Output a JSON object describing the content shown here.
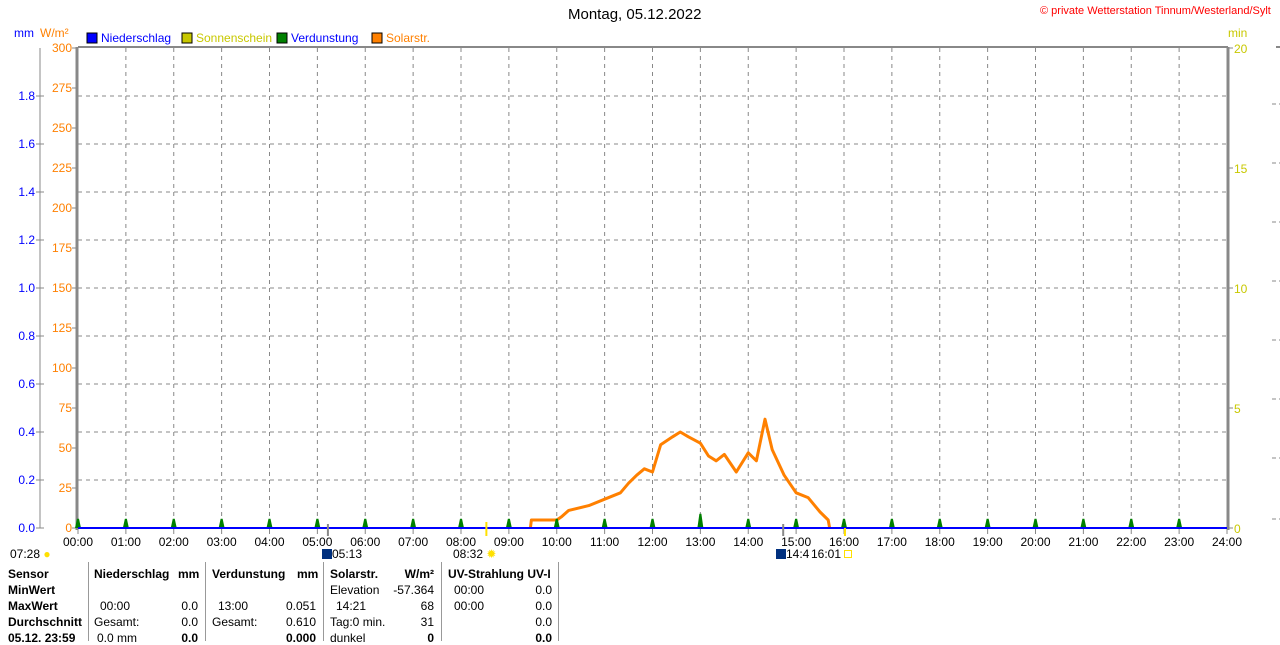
{
  "title": "Montag, 05.12.2022",
  "copyright": "© private Wetterstation Tinnum/Westerland/Sylt",
  "chart_data": {
    "type": "line",
    "title": "Montag, 05.12.2022",
    "legend_position": "top",
    "legend": [
      {
        "name": "Niederschlag",
        "color": "#0000ff"
      },
      {
        "name": "Sonnenschein",
        "color": "#c8c800"
      },
      {
        "name": "Verdunstung",
        "color": "#008000"
      },
      {
        "name": "Solarstr.",
        "color": "#ff8000"
      }
    ],
    "x_ticks": [
      "00:00",
      "01:00",
      "02:00",
      "03:00",
      "04:00",
      "05:00",
      "06:00",
      "07:00",
      "08:00",
      "09:00",
      "10:00",
      "11:00",
      "12:00",
      "13:00",
      "14:00",
      "15:00",
      "16:00",
      "17:00",
      "18:00",
      "19:00",
      "20:00",
      "21:00",
      "22:00",
      "23:00",
      "24:00"
    ],
    "y_left_mm": {
      "unit": "mm",
      "range": [
        0,
        2.0
      ],
      "ticks": [
        "0.0",
        "0.2",
        "0.4",
        "0.6",
        "0.8",
        "1.0",
        "1.2",
        "1.4",
        "1.6",
        "1.8"
      ],
      "color": "#0000ff"
    },
    "y_left_solar": {
      "unit": "W/m²",
      "range": [
        0,
        300
      ],
      "ticks": [
        "0",
        "25",
        "50",
        "75",
        "100",
        "125",
        "150",
        "175",
        "200",
        "225",
        "250",
        "275",
        "300"
      ],
      "color": "#ff8000"
    },
    "y_right_min": {
      "unit": "min",
      "range": [
        0,
        20
      ],
      "ticks": [
        "0",
        "5",
        "10",
        "15",
        "20"
      ],
      "color": "#c8c800"
    },
    "grid": true,
    "series": [
      {
        "name": "Solarstr.",
        "color": "#ff8000",
        "x_hours": [
          9.45,
          9.47,
          10.0,
          10.1,
          10.25,
          10.67,
          11.0,
          11.33,
          11.5,
          11.67,
          11.83,
          12.0,
          12.17,
          12.42,
          12.58,
          12.75,
          13.0,
          13.17,
          13.33,
          13.5,
          13.75,
          14.0,
          14.17,
          14.35,
          14.5,
          14.75,
          15.0,
          15.25,
          15.5,
          15.67,
          15.7
        ],
        "values": [
          0,
          5,
          5,
          7,
          11,
          14,
          18,
          22,
          28,
          33,
          37,
          35,
          52,
          57,
          60,
          57,
          53,
          45,
          42,
          46,
          35,
          47,
          42,
          68,
          49,
          33,
          22,
          19,
          10,
          5,
          0
        ]
      },
      {
        "name": "Verdunstung",
        "color": "#008000",
        "x_hours": [
          0,
          1,
          2,
          3,
          4,
          5,
          6,
          7,
          8,
          9,
          10,
          11,
          12,
          13,
          14,
          15,
          16,
          17,
          18,
          19,
          20,
          21,
          22,
          23
        ],
        "values": [
          0.03,
          0.03,
          0.03,
          0.03,
          0.03,
          0.03,
          0.03,
          0.03,
          0.03,
          0.03,
          0.03,
          0.03,
          0.03,
          0.051,
          0.03,
          0.03,
          0.03,
          0.03,
          0.03,
          0.03,
          0.03,
          0.03,
          0.03,
          0.03
        ]
      },
      {
        "name": "Niederschlag",
        "color": "#0000ff",
        "x_hours": [
          0,
          24
        ],
        "values": [
          0,
          0
        ]
      }
    ]
  },
  "astro": {
    "sunrise_prev": "07:28",
    "moonrise": "05:13",
    "sunrise": "08:32",
    "moonset": "14:4",
    "sunset": "16:01"
  },
  "table": {
    "rows_labels": [
      "Sensor",
      "MinWert",
      "MaxWert",
      "Durchschnitt",
      "05.12. 23:59"
    ],
    "niederschlag": {
      "header": "Niederschlag",
      "unit": "mm",
      "max_time": "00:00",
      "max": "0.0",
      "gesamt_label": "Gesamt:",
      "gesamt": "0.0",
      "last_label": "0.0 mm",
      "last": "0.0"
    },
    "verdunstung": {
      "header": "Verdunstung",
      "unit": "mm",
      "max_time": "13:00",
      "max": "0.051",
      "gesamt_label": "Gesamt:",
      "gesamt": "0.610",
      "last": "0.000"
    },
    "solar": {
      "header": "Solarstr.",
      "unit": "W/m²",
      "min_label": "Elevation",
      "min": "-57.364",
      "max_time": "14:21",
      "max": "68",
      "avg_label": "Tag:0 min.",
      "avg": "31",
      "last_label": "dunkel",
      "last": "0"
    },
    "uv": {
      "header": "UV-Strahlung UV-I",
      "min_time": "00:00",
      "min": "0.0",
      "max_time": "00:00",
      "max": "0.0",
      "avg": "0.0",
      "last": "0.0"
    }
  }
}
